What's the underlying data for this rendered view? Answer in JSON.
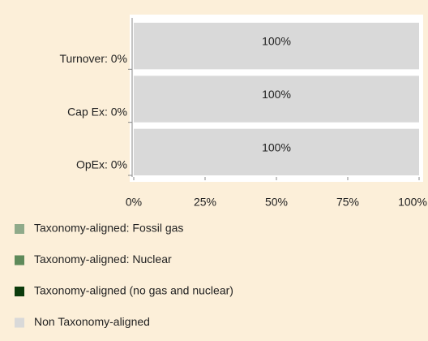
{
  "chart_data": {
    "type": "stacked_barh",
    "categories": [
      "Turnover: 0%",
      "Cap Ex: 0%",
      "OpEx: 0%"
    ],
    "series": [
      {
        "name": "Taxonomy-aligned: Fossil gas",
        "color": "#8faa8a",
        "values": [
          0,
          0,
          0
        ]
      },
      {
        "name": "Taxonomy-aligned: Nuclear",
        "color": "#5e8a5a",
        "values": [
          0,
          0,
          0
        ]
      },
      {
        "name": "Taxonomy-aligned (no gas and nuclear)",
        "color": "#0c3b0c",
        "values": [
          0,
          0,
          0
        ]
      },
      {
        "name": "Non Taxonomy-aligned",
        "color": "#d9d9d9",
        "values": [
          100,
          100,
          100
        ],
        "value_labels": [
          "100%",
          "100%",
          "100%"
        ]
      }
    ],
    "xlim": [
      0,
      100
    ],
    "xticks": [
      {
        "value": 0,
        "label": "0%"
      },
      {
        "value": 25,
        "label": "25%"
      },
      {
        "value": 50,
        "label": "50%"
      },
      {
        "value": 75,
        "label": "75%"
      },
      {
        "value": 100,
        "label": "100%"
      }
    ]
  }
}
